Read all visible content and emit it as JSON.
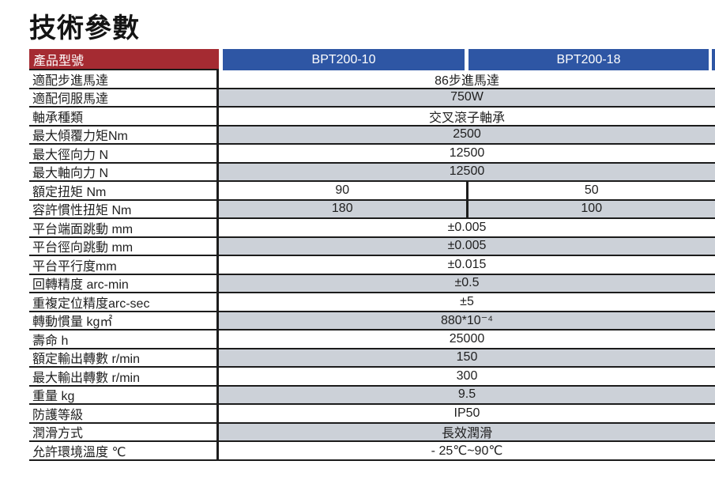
{
  "page": {
    "title": "技術參數"
  },
  "colors": {
    "header_label_bg": "#a52b32",
    "header_model_bg": "#2e56a4",
    "row_alt_bg": "#ccd1d8",
    "border": "#1c1c1c",
    "header_text": "#ffffff",
    "text": "#1f1f1f"
  },
  "table": {
    "header": {
      "label": "產品型號",
      "models": [
        "BPT200-10",
        "BPT200-18"
      ]
    },
    "rows": [
      {
        "label": "適配步進馬達",
        "values": [
          "86步進馬達"
        ]
      },
      {
        "label": "適配伺服馬達",
        "values": [
          "750W"
        ]
      },
      {
        "label": "軸承種類",
        "values": [
          "交叉滾子軸承"
        ]
      },
      {
        "label": "最大傾覆力矩Nm",
        "values": [
          "2500"
        ]
      },
      {
        "label": "最大徑向力 N",
        "values": [
          "12500"
        ]
      },
      {
        "label": "最大軸向力 N",
        "values": [
          "12500"
        ]
      },
      {
        "label": "額定扭矩 Nm",
        "values": [
          "90",
          "50"
        ]
      },
      {
        "label": "容許慣性扭矩 Nm",
        "values": [
          "180",
          "100"
        ]
      },
      {
        "label": "平台端面跳動 mm",
        "values": [
          "±0.005"
        ]
      },
      {
        "label": "平台徑向跳動 mm",
        "values": [
          "±0.005"
        ]
      },
      {
        "label": "平台平行度mm",
        "values": [
          "±0.015"
        ]
      },
      {
        "label": "回轉精度 arc-min",
        "values": [
          "±0.5"
        ]
      },
      {
        "label": "重複定位精度arc-sec",
        "values": [
          "±5"
        ]
      },
      {
        "label": "轉動慣量 kg㎡",
        "values": [
          "880*10⁻⁴"
        ]
      },
      {
        "label": "壽命 h",
        "values": [
          "25000"
        ]
      },
      {
        "label": "額定輸出轉數 r/min",
        "values": [
          "150"
        ]
      },
      {
        "label": "最大輸出轉數 r/min",
        "values": [
          "300"
        ]
      },
      {
        "label": "重量 kg",
        "values": [
          "9.5"
        ]
      },
      {
        "label": "防護等級",
        "values": [
          "IP50"
        ]
      },
      {
        "label": "潤滑方式",
        "values": [
          "長效潤滑"
        ]
      },
      {
        "label": "允許環境溫度 ℃",
        "values": [
          "- 25℃~90℃"
        ]
      }
    ]
  }
}
